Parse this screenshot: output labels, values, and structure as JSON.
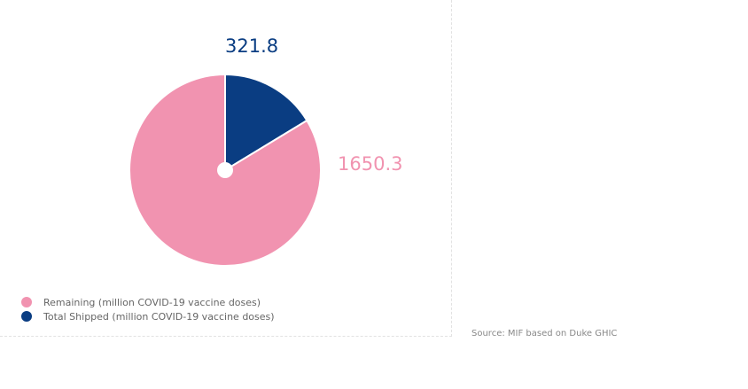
{
  "chart_data": {
    "type": "pie",
    "slices": [
      {
        "name": "Total Shipped (million COVID-19 vaccine doses)",
        "value": 321.8,
        "label": "321.8",
        "color": "#0a3d82"
      },
      {
        "name": "Remaining (million COVID-19 vaccine doses)",
        "value": 1650.3,
        "label": "1650.3",
        "color": "#f193b0"
      }
    ],
    "legend": [
      "Remaining (million COVID-19 vaccine doses)",
      "Total Shipped (million COVID-19 vaccine doses)"
    ],
    "legend_placement": "bottom-left"
  },
  "source": "Source: MIF based on Duke GHIC"
}
